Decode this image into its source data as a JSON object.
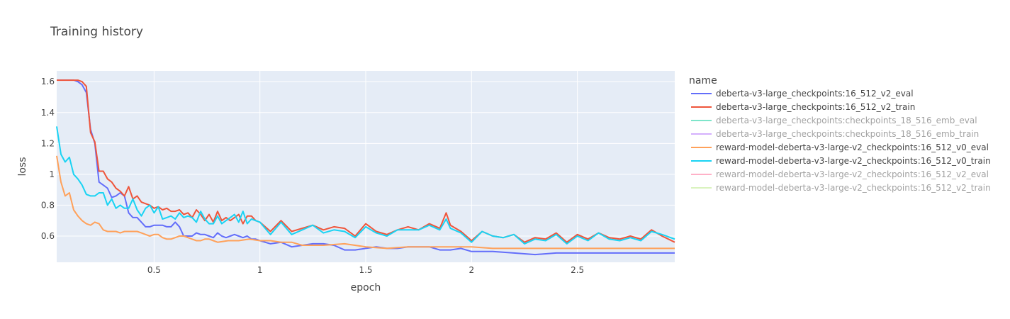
{
  "chart_data": {
    "type": "line",
    "title": "Training history",
    "xlabel": "epoch",
    "ylabel": "loss",
    "legend_title": "name",
    "legend_position": "right",
    "grid": true,
    "xlim": [
      0.04,
      2.96
    ],
    "ylim": [
      0.43,
      1.67
    ],
    "x_ticks": [
      0.5,
      1,
      1.5,
      2,
      2.5
    ],
    "x_tick_labels": [
      "0.5",
      "1",
      "1.5",
      "2",
      "2.5"
    ],
    "y_ticks": [
      0.6,
      0.8,
      1.0,
      1.2,
      1.4,
      1.6
    ],
    "y_tick_labels": [
      "0.6",
      "0.8",
      "1",
      "1.2",
      "1.4",
      "1.6"
    ],
    "series": [
      {
        "name": "deberta-v3-large_checkpoints:16_512_v2_eval",
        "color": "#636efa",
        "visible": true,
        "x": [
          0.04,
          0.06,
          0.08,
          0.1,
          0.12,
          0.14,
          0.16,
          0.18,
          0.2,
          0.22,
          0.24,
          0.26,
          0.28,
          0.3,
          0.32,
          0.34,
          0.36,
          0.38,
          0.4,
          0.42,
          0.44,
          0.46,
          0.48,
          0.5,
          0.52,
          0.54,
          0.56,
          0.58,
          0.6,
          0.62,
          0.64,
          0.66,
          0.68,
          0.7,
          0.72,
          0.74,
          0.76,
          0.78,
          0.8,
          0.82,
          0.84,
          0.86,
          0.88,
          0.9,
          0.92,
          0.94,
          0.96,
          0.98,
          1.0,
          1.05,
          1.1,
          1.15,
          1.2,
          1.25,
          1.3,
          1.35,
          1.4,
          1.45,
          1.5,
          1.55,
          1.6,
          1.65,
          1.7,
          1.75,
          1.8,
          1.85,
          1.9,
          1.95,
          2.0,
          2.1,
          2.2,
          2.3,
          2.4,
          2.5,
          2.6,
          2.7,
          2.8,
          2.9,
          2.96
        ],
        "y": [
          1.61,
          1.61,
          1.61,
          1.61,
          1.61,
          1.6,
          1.58,
          1.53,
          1.29,
          1.2,
          0.95,
          0.93,
          0.91,
          0.85,
          0.86,
          0.88,
          0.86,
          0.75,
          0.72,
          0.72,
          0.69,
          0.66,
          0.66,
          0.67,
          0.67,
          0.67,
          0.66,
          0.66,
          0.69,
          0.66,
          0.6,
          0.6,
          0.6,
          0.62,
          0.61,
          0.61,
          0.6,
          0.59,
          0.62,
          0.6,
          0.59,
          0.6,
          0.61,
          0.6,
          0.59,
          0.6,
          0.58,
          0.58,
          0.57,
          0.55,
          0.56,
          0.53,
          0.54,
          0.55,
          0.55,
          0.54,
          0.51,
          0.51,
          0.52,
          0.53,
          0.52,
          0.52,
          0.53,
          0.53,
          0.53,
          0.51,
          0.51,
          0.52,
          0.5,
          0.5,
          0.49,
          0.48,
          0.49,
          0.49,
          0.49,
          0.49,
          0.49,
          0.49,
          0.49
        ]
      },
      {
        "name": "deberta-v3-large_checkpoints:16_512_v2_train",
        "color": "#ef553b",
        "visible": true,
        "x": [
          0.04,
          0.06,
          0.08,
          0.1,
          0.12,
          0.14,
          0.16,
          0.18,
          0.2,
          0.22,
          0.24,
          0.26,
          0.28,
          0.3,
          0.32,
          0.34,
          0.36,
          0.38,
          0.4,
          0.42,
          0.44,
          0.46,
          0.48,
          0.5,
          0.52,
          0.54,
          0.56,
          0.58,
          0.6,
          0.62,
          0.64,
          0.66,
          0.68,
          0.7,
          0.72,
          0.74,
          0.76,
          0.78,
          0.8,
          0.82,
          0.84,
          0.86,
          0.88,
          0.9,
          0.92,
          0.94,
          0.96,
          0.98,
          1.0,
          1.05,
          1.1,
          1.15,
          1.2,
          1.25,
          1.3,
          1.35,
          1.4,
          1.45,
          1.5,
          1.55,
          1.6,
          1.65,
          1.7,
          1.75,
          1.8,
          1.85,
          1.88,
          1.9,
          1.95,
          2.0,
          2.05,
          2.1,
          2.15,
          2.2,
          2.25,
          2.3,
          2.35,
          2.4,
          2.45,
          2.5,
          2.55,
          2.6,
          2.65,
          2.7,
          2.75,
          2.8,
          2.85,
          2.9,
          2.96
        ],
        "y": [
          1.61,
          1.61,
          1.61,
          1.61,
          1.61,
          1.61,
          1.6,
          1.57,
          1.27,
          1.21,
          1.02,
          1.02,
          0.97,
          0.95,
          0.91,
          0.89,
          0.86,
          0.92,
          0.84,
          0.86,
          0.82,
          0.81,
          0.8,
          0.78,
          0.79,
          0.77,
          0.78,
          0.76,
          0.76,
          0.77,
          0.74,
          0.75,
          0.72,
          0.77,
          0.74,
          0.7,
          0.74,
          0.69,
          0.76,
          0.7,
          0.72,
          0.7,
          0.72,
          0.74,
          0.68,
          0.73,
          0.73,
          0.7,
          0.69,
          0.63,
          0.7,
          0.63,
          0.65,
          0.67,
          0.64,
          0.66,
          0.65,
          0.6,
          0.68,
          0.63,
          0.61,
          0.64,
          0.66,
          0.64,
          0.68,
          0.65,
          0.75,
          0.67,
          0.63,
          0.57,
          0.63,
          0.6,
          0.59,
          0.61,
          0.56,
          0.59,
          0.58,
          0.62,
          0.56,
          0.61,
          0.58,
          0.62,
          0.59,
          0.58,
          0.6,
          0.58,
          0.64,
          0.6,
          0.56
        ]
      },
      {
        "name": "deberta-v3-large_checkpoints:checkpoints_18_516_emb_eval",
        "color": "#00cc96",
        "visible": false,
        "x": [],
        "y": []
      },
      {
        "name": "deberta-v3-large_checkpoints:checkpoints_18_516_emb_train",
        "color": "#ab63fa",
        "visible": false,
        "x": [],
        "y": []
      },
      {
        "name": "reward-model-deberta-v3-large-v2_checkpoints:16_512_v0_eval",
        "color": "#ffa15a",
        "visible": true,
        "x": [
          0.04,
          0.06,
          0.08,
          0.1,
          0.12,
          0.14,
          0.16,
          0.18,
          0.2,
          0.22,
          0.24,
          0.26,
          0.28,
          0.3,
          0.32,
          0.34,
          0.36,
          0.38,
          0.4,
          0.42,
          0.44,
          0.46,
          0.48,
          0.5,
          0.52,
          0.54,
          0.56,
          0.58,
          0.6,
          0.62,
          0.64,
          0.66,
          0.68,
          0.7,
          0.72,
          0.74,
          0.76,
          0.78,
          0.8,
          0.85,
          0.9,
          0.95,
          1.0,
          1.05,
          1.1,
          1.15,
          1.2,
          1.25,
          1.3,
          1.4,
          1.5,
          1.6,
          1.7,
          1.8,
          1.9,
          2.0,
          2.1,
          2.2,
          2.3,
          2.4,
          2.5,
          2.6,
          2.7,
          2.8,
          2.9,
          2.96
        ],
        "y": [
          1.12,
          0.95,
          0.86,
          0.88,
          0.77,
          0.73,
          0.7,
          0.68,
          0.67,
          0.69,
          0.68,
          0.64,
          0.63,
          0.63,
          0.63,
          0.62,
          0.63,
          0.63,
          0.63,
          0.63,
          0.62,
          0.61,
          0.6,
          0.61,
          0.61,
          0.59,
          0.58,
          0.58,
          0.59,
          0.6,
          0.6,
          0.59,
          0.58,
          0.57,
          0.57,
          0.58,
          0.58,
          0.57,
          0.56,
          0.57,
          0.57,
          0.58,
          0.57,
          0.57,
          0.56,
          0.56,
          0.54,
          0.54,
          0.54,
          0.55,
          0.53,
          0.52,
          0.53,
          0.53,
          0.53,
          0.53,
          0.52,
          0.52,
          0.52,
          0.52,
          0.52,
          0.52,
          0.52,
          0.52,
          0.52,
          0.52
        ]
      },
      {
        "name": "reward-model-deberta-v3-large-v2_checkpoints:16_512_v0_train",
        "color": "#19d3f3",
        "visible": true,
        "x": [
          0.04,
          0.06,
          0.08,
          0.1,
          0.12,
          0.14,
          0.16,
          0.18,
          0.2,
          0.22,
          0.24,
          0.26,
          0.28,
          0.3,
          0.32,
          0.34,
          0.36,
          0.38,
          0.4,
          0.42,
          0.44,
          0.46,
          0.48,
          0.5,
          0.52,
          0.54,
          0.56,
          0.58,
          0.6,
          0.62,
          0.64,
          0.66,
          0.68,
          0.7,
          0.72,
          0.74,
          0.76,
          0.78,
          0.8,
          0.82,
          0.84,
          0.86,
          0.88,
          0.9,
          0.92,
          0.94,
          0.96,
          0.98,
          1.0,
          1.05,
          1.1,
          1.15,
          1.2,
          1.25,
          1.3,
          1.35,
          1.4,
          1.45,
          1.5,
          1.55,
          1.6,
          1.65,
          1.7,
          1.75,
          1.8,
          1.85,
          1.88,
          1.9,
          1.95,
          2.0,
          2.05,
          2.1,
          2.15,
          2.2,
          2.25,
          2.3,
          2.35,
          2.4,
          2.45,
          2.5,
          2.55,
          2.6,
          2.65,
          2.7,
          2.75,
          2.8,
          2.85,
          2.9,
          2.96
        ],
        "y": [
          1.31,
          1.13,
          1.08,
          1.11,
          1.0,
          0.97,
          0.93,
          0.87,
          0.86,
          0.86,
          0.88,
          0.88,
          0.8,
          0.84,
          0.78,
          0.8,
          0.78,
          0.78,
          0.84,
          0.77,
          0.73,
          0.78,
          0.8,
          0.75,
          0.79,
          0.71,
          0.72,
          0.73,
          0.71,
          0.75,
          0.72,
          0.73,
          0.72,
          0.69,
          0.76,
          0.71,
          0.68,
          0.68,
          0.73,
          0.68,
          0.7,
          0.72,
          0.74,
          0.69,
          0.76,
          0.68,
          0.71,
          0.7,
          0.69,
          0.61,
          0.69,
          0.61,
          0.64,
          0.67,
          0.62,
          0.64,
          0.63,
          0.59,
          0.66,
          0.62,
          0.6,
          0.64,
          0.64,
          0.64,
          0.67,
          0.64,
          0.71,
          0.65,
          0.62,
          0.56,
          0.63,
          0.6,
          0.59,
          0.61,
          0.55,
          0.58,
          0.57,
          0.61,
          0.55,
          0.6,
          0.57,
          0.62,
          0.58,
          0.57,
          0.59,
          0.57,
          0.63,
          0.61,
          0.58
        ]
      },
      {
        "name": "reward-model-deberta-v3-large-v2_checkpoints:16_512_v2_eval",
        "color": "#ff6692",
        "visible": false,
        "x": [],
        "y": []
      },
      {
        "name": "reward-model-deberta-v3-large-v2_checkpoints:16_512_v2_train",
        "color": "#b6e880",
        "visible": false,
        "x": [],
        "y": []
      }
    ]
  }
}
